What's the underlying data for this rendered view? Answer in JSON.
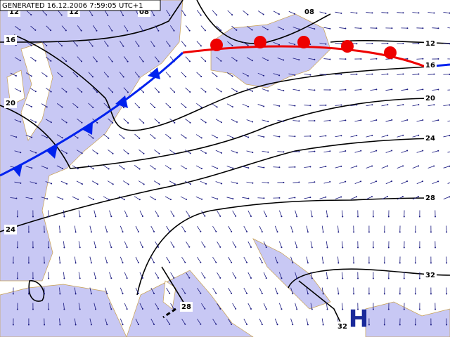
{
  "header": {
    "generated": "GENERATED 16.12.2006 7:59:05 UTC+1"
  },
  "contour_labels": [
    "12",
    "12",
    "08",
    "08",
    "16",
    "12",
    "16",
    "20",
    "20",
    "24",
    "28",
    "24",
    "32",
    "28",
    "32"
  ],
  "pressure_center": "H"
}
